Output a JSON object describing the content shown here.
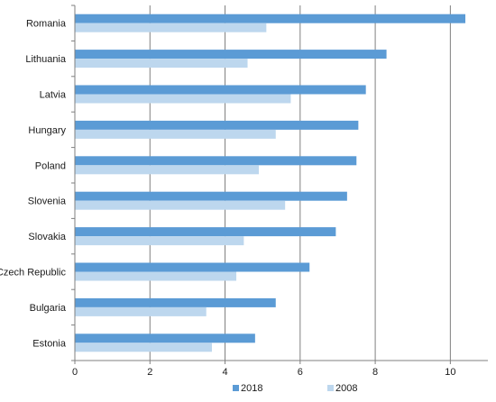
{
  "chart_data": {
    "type": "bar",
    "orientation": "horizontal",
    "categories": [
      "Romania",
      "Lithuania",
      "Latvia",
      "Hungary",
      "Poland",
      "Slovenia",
      "Slovakia",
      "Czech Republic",
      "Bulgaria",
      "Estonia"
    ],
    "series": [
      {
        "name": "2018",
        "color": "#5b9bd5",
        "values": [
          10.4,
          8.3,
          7.75,
          7.55,
          7.5,
          7.25,
          6.95,
          6.25,
          5.35,
          4.8
        ]
      },
      {
        "name": "2008",
        "color": "#bdd7ee",
        "values": [
          5.1,
          4.6,
          5.75,
          5.35,
          4.9,
          5.6,
          4.5,
          4.3,
          3.5,
          3.65
        ]
      }
    ],
    "xlim": [
      0,
      11
    ],
    "xticks": [
      0,
      2,
      4,
      6,
      8,
      10
    ],
    "grid": true,
    "legend_position": "bottom",
    "title": "",
    "xlabel": "",
    "ylabel": ""
  }
}
